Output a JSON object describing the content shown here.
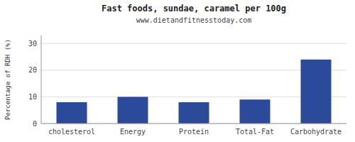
{
  "chart_data": {
    "type": "bar",
    "title": "Fast foods, sundae, caramel per 100g",
    "subtitle": "www.dietandfitnesstoday.com",
    "categories": [
      "cholesterol",
      "Energy",
      "Protein",
      "Total-Fat",
      "Carbohydrate"
    ],
    "values": [
      8,
      10,
      8,
      9,
      24
    ],
    "color": "#2b4a9a",
    "ylabel": "Percentage of RDH (%)",
    "ylim": [
      0,
      33
    ],
    "yticks": [
      0,
      10,
      20,
      30
    ],
    "grid": true
  }
}
